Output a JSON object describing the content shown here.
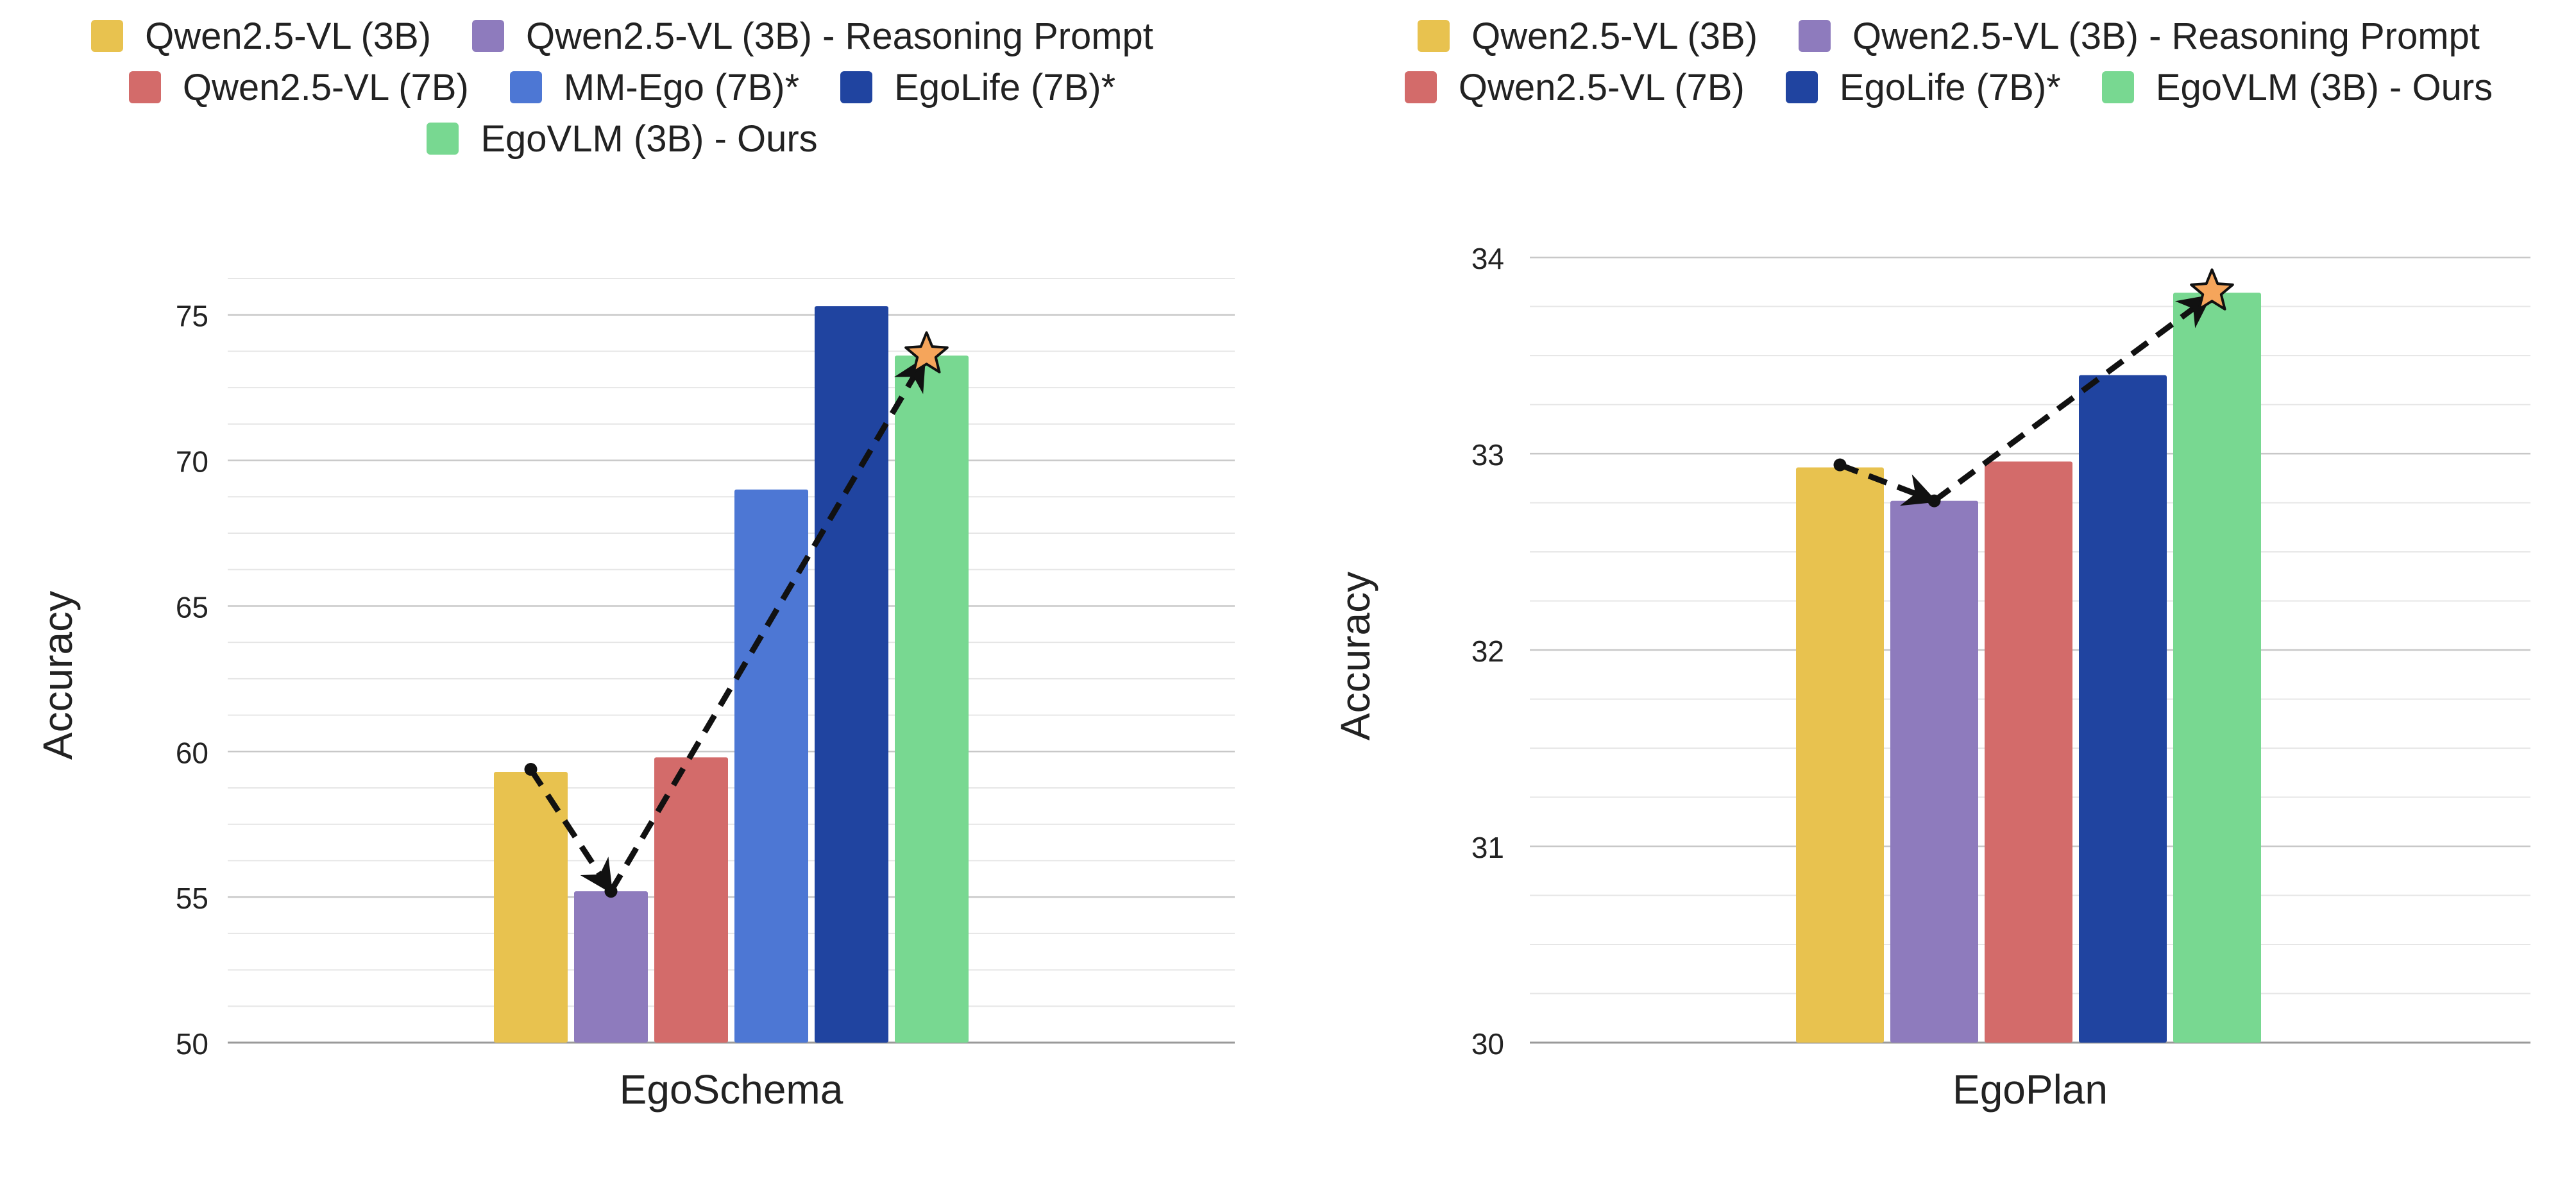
{
  "chart_data": [
    {
      "type": "bar",
      "title": "",
      "xlabel": "EgoSchema",
      "ylabel": "Accuracy",
      "categories": [
        "EgoSchema"
      ],
      "ylim": [
        50,
        77
      ],
      "yticks": [
        50,
        55,
        60,
        65,
        70,
        75
      ],
      "grid": true,
      "legend_position": "top",
      "series": [
        {
          "name": "Qwen2.5-VL (3B)",
          "values": [
            59.3
          ],
          "color": "#E8C24F"
        },
        {
          "name": "Qwen2.5-VL (3B) - Reasoning Prompt",
          "values": [
            55.2
          ],
          "color": "#8E7BBD"
        },
        {
          "name": "Qwen2.5-VL (7B)",
          "values": [
            59.8
          ],
          "color": "#D36B6A"
        },
        {
          "name": "MM-Ego (7B)*",
          "values": [
            69.0
          ],
          "color": "#4D77D4"
        },
        {
          "name": "EgoLife (7B)*",
          "values": [
            75.3
          ],
          "color": "#2044A0"
        },
        {
          "name": "EgoVLM (3B) - Ours",
          "values": [
            73.6
          ],
          "color": "#78D891"
        }
      ]
    },
    {
      "type": "bar",
      "title": "",
      "xlabel": "EgoPlan",
      "ylabel": "Accuracy",
      "categories": [
        "EgoPlan"
      ],
      "ylim": [
        30,
        34.2
      ],
      "yticks": [
        30,
        31,
        32,
        33,
        34
      ],
      "grid": true,
      "legend_position": "top",
      "series": [
        {
          "name": "Qwen2.5-VL (3B)",
          "values": [
            32.93
          ],
          "color": "#E8C24F"
        },
        {
          "name": "Qwen2.5-VL (3B) - Reasoning Prompt",
          "values": [
            32.76
          ],
          "color": "#8E7BBD"
        },
        {
          "name": "Qwen2.5-VL (7B)",
          "values": [
            32.96
          ],
          "color": "#D36B6A"
        },
        {
          "name": "EgoLife (7B)*",
          "values": [
            33.4
          ],
          "color": "#2044A0"
        },
        {
          "name": "EgoVLM (3B) - Ours",
          "values": [
            33.82
          ],
          "color": "#78D891"
        }
      ]
    }
  ]
}
